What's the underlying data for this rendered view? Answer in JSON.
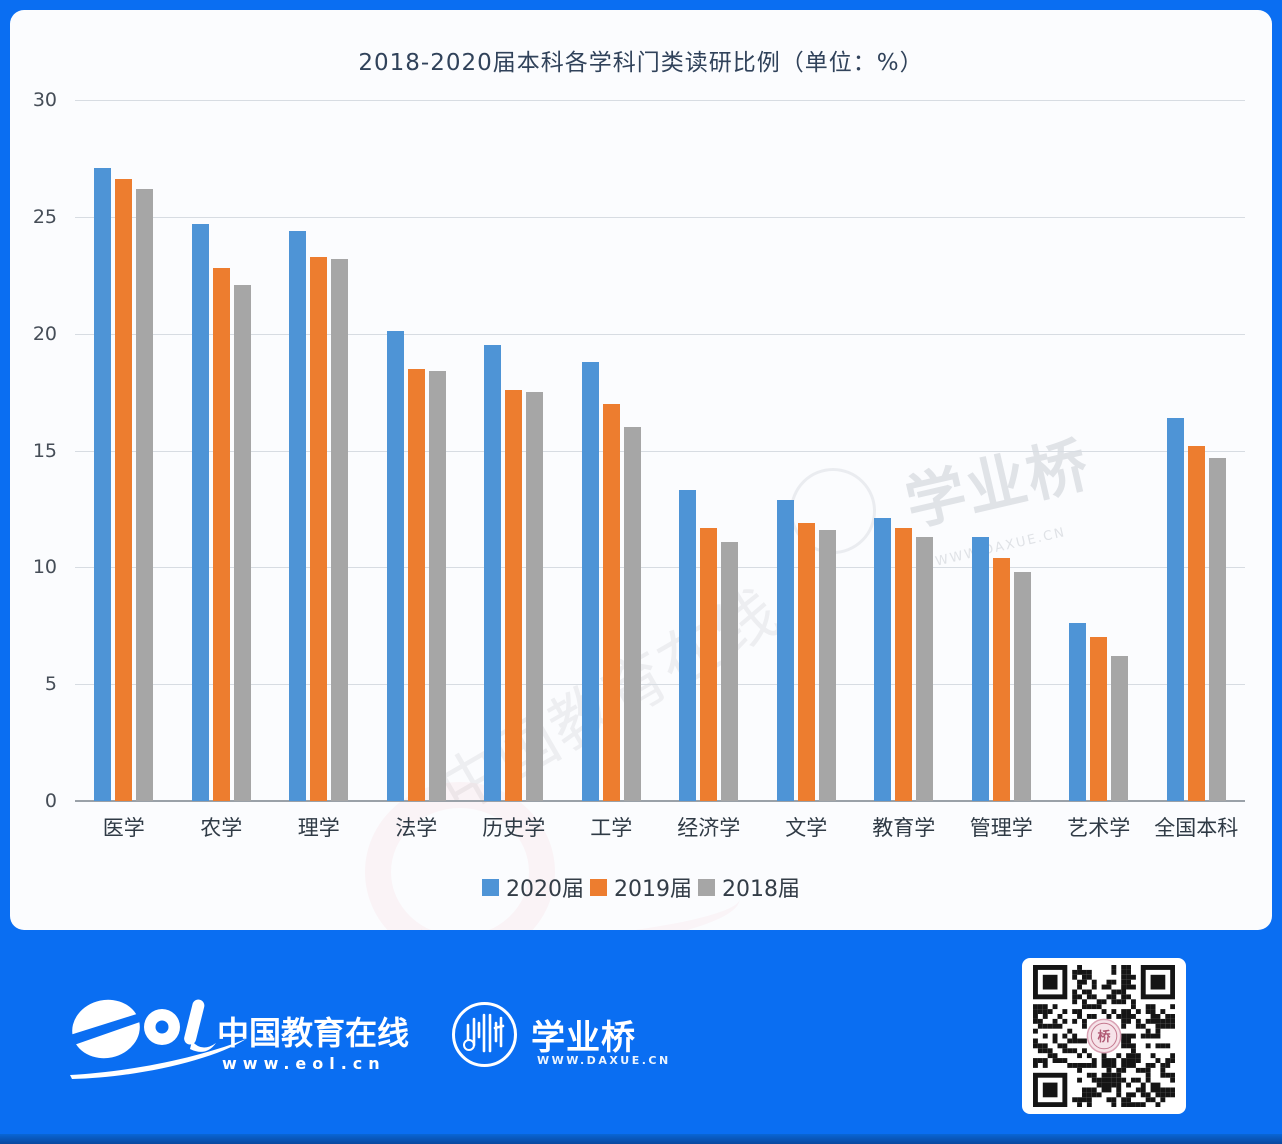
{
  "title": "2018-2020届本科各学科门类读研比例（单位：%）",
  "chart_data": {
    "type": "bar",
    "categories": [
      "医学",
      "农学",
      "理学",
      "法学",
      "历史学",
      "工学",
      "经济学",
      "文学",
      "教育学",
      "管理学",
      "艺术学",
      "全国本科"
    ],
    "series": [
      {
        "name": "2020届",
        "color": "#4e94d6",
        "values": [
          27.1,
          24.7,
          24.4,
          20.1,
          19.5,
          18.8,
          13.3,
          12.9,
          12.1,
          11.3,
          7.6,
          16.4
        ]
      },
      {
        "name": "2019届",
        "color": "#ed7d2f",
        "values": [
          26.6,
          22.8,
          23.3,
          18.5,
          17.6,
          17.0,
          11.7,
          11.9,
          11.7,
          10.4,
          7.0,
          15.2
        ]
      },
      {
        "name": "2018届",
        "color": "#a6a6a6",
        "values": [
          26.2,
          22.1,
          23.2,
          18.4,
          17.5,
          16.0,
          11.1,
          11.6,
          11.3,
          9.8,
          6.2,
          14.7
        ]
      }
    ],
    "title": "2018-2020届本科各学科门类读研比例（单位：%）",
    "xlabel": "",
    "ylabel": "",
    "ylim": [
      0,
      30
    ],
    "yticks": [
      0,
      5,
      10,
      15,
      20,
      25,
      30
    ],
    "grid": true,
    "legend_position": "bottom"
  },
  "watermarks": {
    "bridge_text": "学业桥",
    "bridge_url": "WWW.DAXUE.CN",
    "site_text": "中国教育在线"
  },
  "footer": {
    "brand_logo": "eol",
    "brand_cn": "中国教育在线",
    "brand_url": "www.eol.cn",
    "bridge_name": "学业桥",
    "bridge_url": "WWW.DAXUE.CN"
  },
  "colors": {
    "frame_blue": "#0a6ef2",
    "bar_blue": "#4e94d6",
    "bar_orange": "#ed7d2f",
    "bar_gray": "#a6a6a6"
  }
}
